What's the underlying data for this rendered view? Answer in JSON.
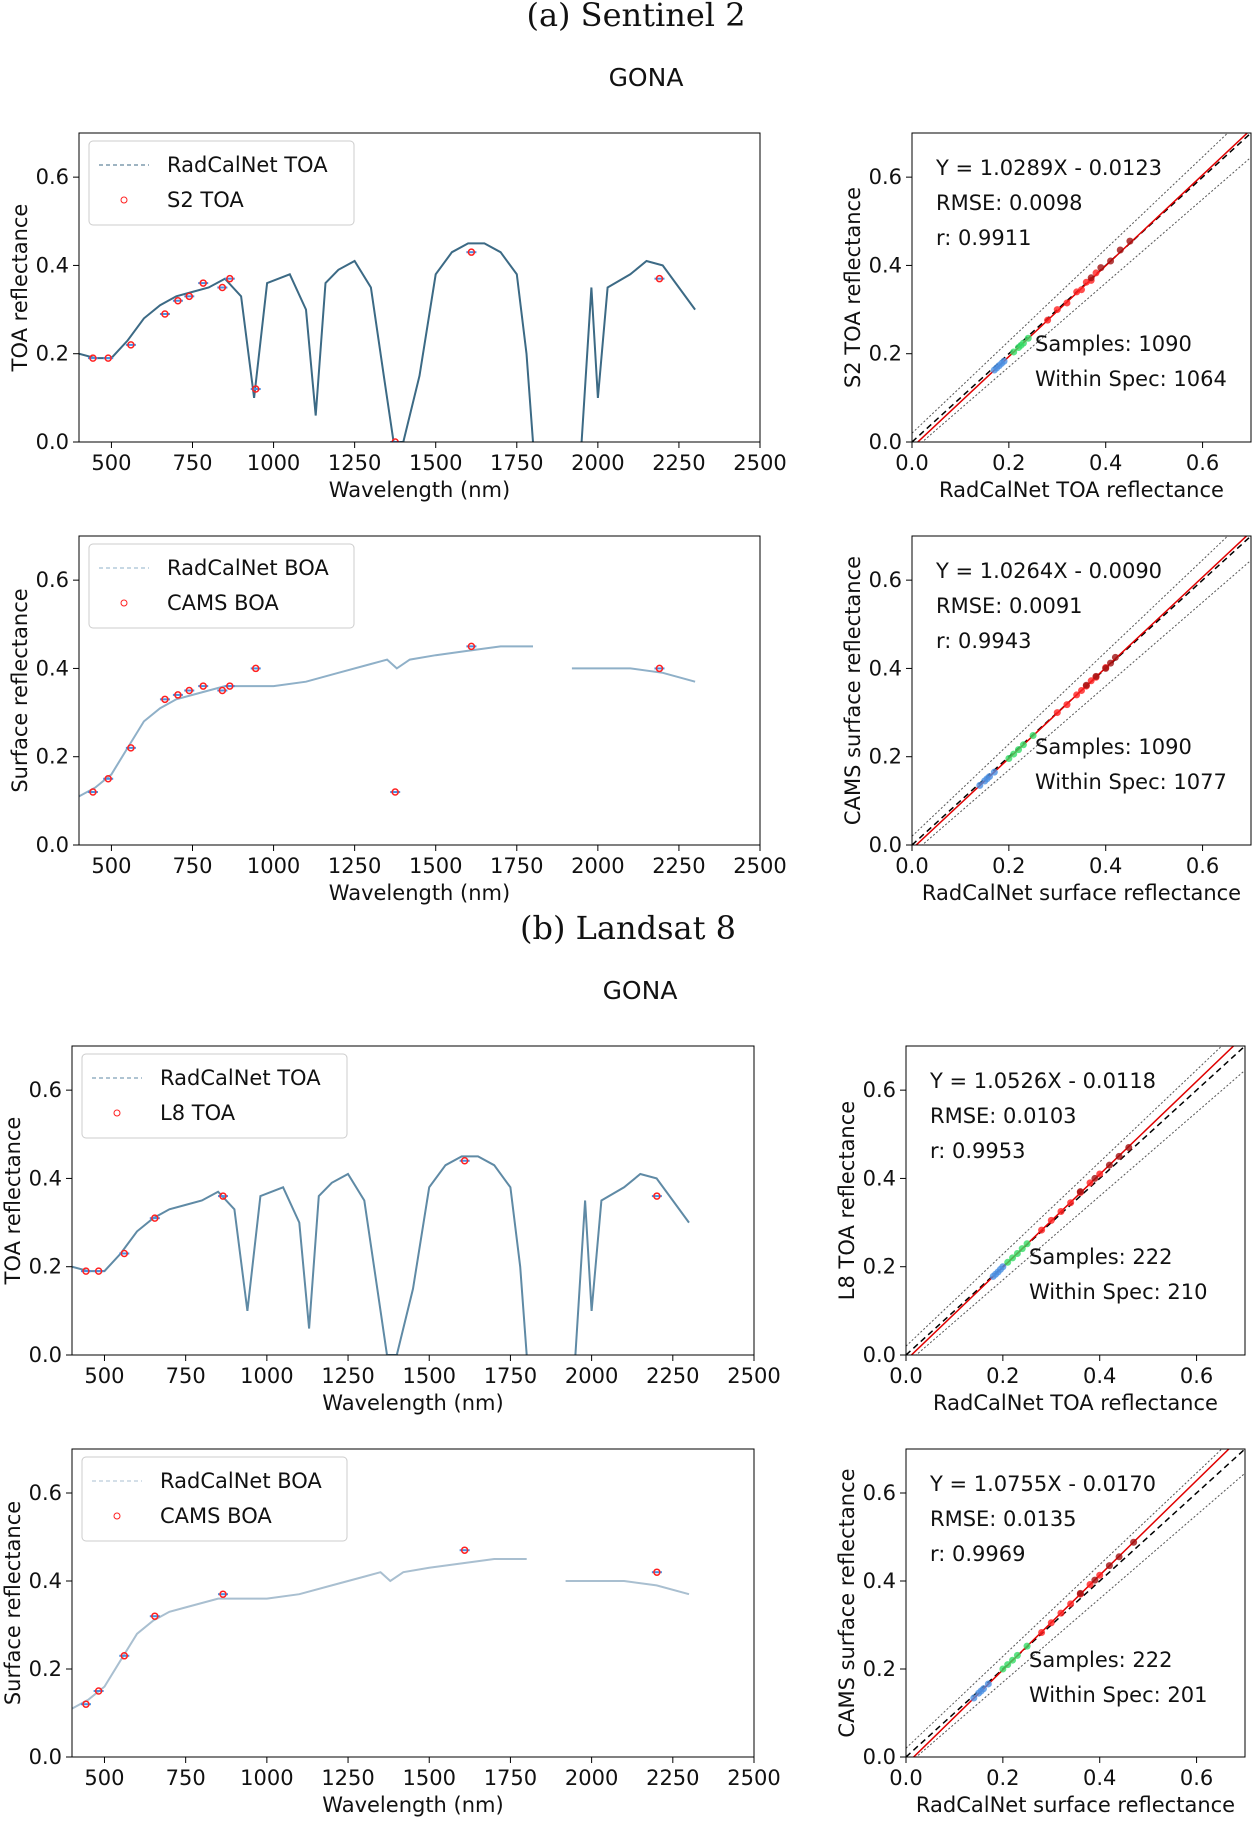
{
  "headings": [
    "(a) Sentinel 2",
    "GONA",
    "(b) Landsat 8",
    "GONA"
  ],
  "chart_data": [
    {
      "type": "line",
      "xlabel": "Wavelength (nm)",
      "ylabel": "TOA reflectance",
      "xlim": [
        400,
        2500
      ],
      "ylim": [
        0,
        0.7
      ],
      "xticks": [
        500,
        750,
        1000,
        1250,
        1500,
        1750,
        2000,
        2250,
        2500
      ],
      "yticks": [
        {
          "value": 0,
          "label": "0.0"
        },
        0.2,
        0.4,
        0.6
      ],
      "legend": "upper left",
      "series": [
        {
          "name": "RadCalNet TOA",
          "color": "#3c6a85",
          "x": [
            400,
            450,
            500,
            550,
            600,
            650,
            700,
            750,
            800,
            850,
            900,
            940,
            980,
            1050,
            1100,
            1130,
            1160,
            1200,
            1250,
            1300,
            1340,
            1370,
            1400,
            1450,
            1500,
            1550,
            1600,
            1650,
            1700,
            1750,
            1780,
            1800,
            1850,
            1950,
            1980,
            2000,
            2030,
            2100,
            2150,
            2200,
            2250,
            2300
          ],
          "values": [
            0.2,
            0.19,
            0.19,
            0.23,
            0.28,
            0.31,
            0.33,
            0.34,
            0.35,
            0.37,
            0.33,
            0.1,
            0.36,
            0.38,
            0.3,
            0.06,
            0.36,
            0.39,
            0.41,
            0.35,
            0.15,
            0,
            0,
            0.15,
            0.38,
            0.43,
            0.45,
            0.45,
            0.43,
            0.38,
            0.2,
            0,
            null,
            0,
            0.35,
            0.1,
            0.35,
            0.38,
            0.41,
            0.4,
            0.35,
            0.3
          ]
        },
        {
          "name": "S2 TOA",
          "color": "#ff2020",
          "x": [
            443,
            490,
            560,
            665,
            705,
            740,
            783,
            842,
            865,
            945,
            1375,
            1610,
            2190
          ],
          "values": [
            0.19,
            0.19,
            0.22,
            0.29,
            0.32,
            0.33,
            0.36,
            0.35,
            0.37,
            0.12,
            0,
            0.43,
            0.37
          ]
        }
      ]
    },
    {
      "type": "scatter",
      "xlabel": "RadCalNet TOA reflectance",
      "ylabel": "S2 TOA reflectance",
      "xlim": [
        0,
        0.7
      ],
      "ylim": [
        0,
        0.7
      ],
      "xticks": [
        {
          "value": 0,
          "label": "0.0"
        },
        0.2,
        0.4,
        0.6
      ],
      "yticks": [
        {
          "value": 0,
          "label": "0.0"
        },
        0.2,
        0.4,
        0.6
      ],
      "annotations": [
        "Y = 1.0289X - 0.0123",
        "RMSE: 0.0098",
        "r: 0.9911"
      ],
      "summary": [
        "Samples: 1090",
        "Within Spec: 1064"
      ],
      "fit": {
        "slope": 1.0289,
        "intercept": -0.0123,
        "color": "#e00000"
      },
      "bounds": [
        {
          "x": [
            0,
            0.7
          ],
          "values": [
            0.02,
            0.75
          ]
        },
        {
          "x": [
            0,
            0.7
          ],
          "values": [
            -0.02,
            0.645
          ]
        }
      ],
      "series": [
        {
          "color": "#4a90e2",
          "x": [
            0.17,
            0.175,
            0.18,
            0.185,
            0.19
          ],
          "values": [
            0.163,
            0.168,
            0.173,
            0.178,
            0.183
          ]
        },
        {
          "color": "#33dd66",
          "x": [
            0.21,
            0.22,
            0.225,
            0.23,
            0.24
          ],
          "values": [
            0.204,
            0.214,
            0.219,
            0.224,
            0.235
          ]
        },
        {
          "color": "#ff2020",
          "x": [
            0.28,
            0.3,
            0.32,
            0.34,
            0.35,
            0.36,
            0.37,
            0.38
          ],
          "values": [
            0.276,
            0.3,
            0.315,
            0.34,
            0.345,
            0.362,
            0.366,
            0.383
          ]
        },
        {
          "color": "#a01010",
          "x": [
            0.37,
            0.39,
            0.41,
            0.43,
            0.45
          ],
          "values": [
            0.372,
            0.395,
            0.41,
            0.435,
            0.455
          ]
        }
      ]
    },
    {
      "type": "line",
      "xlabel": "Wavelength (nm)",
      "ylabel": "Surface reflectance",
      "xlim": [
        400,
        2500
      ],
      "ylim": [
        0,
        0.7
      ],
      "xticks": [
        500,
        750,
        1000,
        1250,
        1500,
        1750,
        2000,
        2250,
        2500
      ],
      "yticks": [
        {
          "value": 0,
          "label": "0.0"
        },
        0.2,
        0.4,
        0.6
      ],
      "legend": "upper left",
      "series": [
        {
          "name": "RadCalNet BOA",
          "color": "#8fb0c8",
          "x": [
            400,
            450,
            500,
            550,
            600,
            650,
            700,
            750,
            800,
            850,
            900,
            1000,
            1100,
            1200,
            1300,
            1350,
            1380,
            1420,
            1500,
            1600,
            1700,
            1800,
            1850,
            1920,
            2000,
            2100,
            2200,
            2300
          ],
          "values": [
            0.11,
            0.13,
            0.16,
            0.22,
            0.28,
            0.31,
            0.33,
            0.34,
            0.35,
            0.36,
            0.36,
            0.36,
            0.37,
            0.39,
            0.41,
            0.42,
            0.4,
            0.42,
            0.43,
            0.44,
            0.45,
            0.45,
            null,
            0.4,
            0.4,
            0.4,
            0.39,
            0.37
          ]
        },
        {
          "name": "CAMS BOA",
          "color": "#ff2020",
          "x": [
            443,
            490,
            560,
            665,
            705,
            740,
            783,
            842,
            865,
            945,
            1375,
            1610,
            2190
          ],
          "values": [
            0.12,
            0.15,
            0.22,
            0.33,
            0.34,
            0.35,
            0.36,
            0.35,
            0.36,
            0.4,
            0.12,
            0.45,
            0.4
          ]
        }
      ]
    },
    {
      "type": "scatter",
      "xlabel": "RadCalNet surface reflectance",
      "ylabel": "CAMS surface reflectance",
      "xlim": [
        0,
        0.7
      ],
      "ylim": [
        0,
        0.7
      ],
      "xticks": [
        {
          "value": 0,
          "label": "0.0"
        },
        0.2,
        0.4,
        0.6
      ],
      "yticks": [
        {
          "value": 0,
          "label": "0.0"
        },
        0.2,
        0.4,
        0.6
      ],
      "annotations": [
        "Y = 1.0264X - 0.0090",
        "RMSE: 0.0091",
        "r: 0.9943"
      ],
      "summary": [
        "Samples: 1090",
        "Within Spec: 1077"
      ],
      "fit": {
        "slope": 1.0264,
        "intercept": -0.009,
        "color": "#e00000"
      },
      "bounds": [
        {
          "x": [
            0,
            0.7
          ],
          "values": [
            0.02,
            0.75
          ]
        },
        {
          "x": [
            0,
            0.7
          ],
          "values": [
            -0.02,
            0.645
          ]
        }
      ],
      "series": [
        {
          "color": "#4a90e2",
          "x": [
            0.14,
            0.15,
            0.155,
            0.16,
            0.17
          ],
          "values": [
            0.135,
            0.145,
            0.15,
            0.155,
            0.165
          ]
        },
        {
          "color": "#33dd66",
          "x": [
            0.2,
            0.21,
            0.22,
            0.23,
            0.25
          ],
          "values": [
            0.196,
            0.206,
            0.216,
            0.227,
            0.248
          ]
        },
        {
          "color": "#ff2020",
          "x": [
            0.3,
            0.32,
            0.34,
            0.35,
            0.36,
            0.37,
            0.38,
            0.4
          ],
          "values": [
            0.3,
            0.318,
            0.34,
            0.35,
            0.36,
            0.372,
            0.38,
            0.402
          ]
        },
        {
          "color": "#a01010",
          "x": [
            0.36,
            0.38,
            0.4,
            0.41,
            0.42
          ],
          "values": [
            0.362,
            0.382,
            0.4,
            0.412,
            0.425
          ]
        }
      ]
    },
    {
      "type": "line",
      "xlabel": "Wavelength (nm)",
      "ylabel": "TOA reflectance",
      "xlim": [
        400,
        2500
      ],
      "ylim": [
        0,
        0.7
      ],
      "xticks": [
        500,
        750,
        1000,
        1250,
        1500,
        1750,
        2000,
        2250,
        2500
      ],
      "yticks": [
        {
          "value": 0,
          "label": "0.0"
        },
        0.2,
        0.4,
        0.6
      ],
      "legend": "upper left",
      "series": [
        {
          "name": "RadCalNet TOA",
          "color": "#5f8aa5",
          "x": [
            400,
            450,
            500,
            550,
            600,
            650,
            700,
            750,
            800,
            850,
            900,
            940,
            980,
            1050,
            1100,
            1130,
            1160,
            1200,
            1250,
            1300,
            1340,
            1370,
            1400,
            1450,
            1500,
            1550,
            1600,
            1650,
            1700,
            1750,
            1780,
            1800,
            1850,
            1950,
            1980,
            2000,
            2030,
            2100,
            2150,
            2200,
            2250,
            2300
          ],
          "values": [
            0.2,
            0.19,
            0.19,
            0.23,
            0.28,
            0.31,
            0.33,
            0.34,
            0.35,
            0.37,
            0.33,
            0.1,
            0.36,
            0.38,
            0.3,
            0.06,
            0.36,
            0.39,
            0.41,
            0.35,
            0.15,
            0,
            0,
            0.15,
            0.38,
            0.43,
            0.45,
            0.45,
            0.43,
            0.38,
            0.2,
            0,
            null,
            0,
            0.35,
            0.1,
            0.35,
            0.38,
            0.41,
            0.4,
            0.35,
            0.3
          ]
        },
        {
          "name": "L8 TOA",
          "color": "#ff2020",
          "x": [
            443,
            482,
            561,
            655,
            865,
            1609,
            2201
          ],
          "values": [
            0.19,
            0.19,
            0.23,
            0.31,
            0.36,
            0.44,
            0.36
          ]
        }
      ]
    },
    {
      "type": "scatter",
      "xlabel": "RadCalNet TOA reflectance",
      "ylabel": "L8 TOA reflectance",
      "xlim": [
        0,
        0.7
      ],
      "ylim": [
        0,
        0.7
      ],
      "xticks": [
        {
          "value": 0,
          "label": "0.0"
        },
        0.2,
        0.4,
        0.6
      ],
      "yticks": [
        {
          "value": 0,
          "label": "0.0"
        },
        0.2,
        0.4,
        0.6
      ],
      "annotations": [
        "Y = 1.0526X - 0.0118",
        "RMSE: 0.0103",
        "r: 0.9953"
      ],
      "summary": [
        "Samples: 222",
        "Within Spec: 210"
      ],
      "fit": {
        "slope": 1.0526,
        "intercept": -0.0118,
        "color": "#e00000"
      },
      "bounds": [
        {
          "x": [
            0,
            0.7
          ],
          "values": [
            0.02,
            0.75
          ]
        },
        {
          "x": [
            0,
            0.7
          ],
          "values": [
            -0.02,
            0.645
          ]
        }
      ],
      "series": [
        {
          "color": "#4a90e2",
          "x": [
            0.18,
            0.185,
            0.19,
            0.195,
            0.2
          ],
          "values": [
            0.178,
            0.183,
            0.188,
            0.194,
            0.2
          ]
        },
        {
          "color": "#33dd66",
          "x": [
            0.21,
            0.22,
            0.23,
            0.24,
            0.25
          ],
          "values": [
            0.21,
            0.22,
            0.23,
            0.241,
            0.252
          ]
        },
        {
          "color": "#ff2020",
          "x": [
            0.28,
            0.3,
            0.32,
            0.34,
            0.36,
            0.38,
            0.4
          ],
          "values": [
            0.283,
            0.305,
            0.325,
            0.345,
            0.368,
            0.39,
            0.41
          ]
        },
        {
          "color": "#a01010",
          "x": [
            0.36,
            0.39,
            0.42,
            0.44,
            0.46
          ],
          "values": [
            0.37,
            0.4,
            0.43,
            0.45,
            0.47
          ]
        }
      ]
    },
    {
      "type": "line",
      "xlabel": "Wavelength (nm)",
      "ylabel": "Surface reflectance",
      "xlim": [
        400,
        2500
      ],
      "ylim": [
        0,
        0.7
      ],
      "xticks": [
        500,
        750,
        1000,
        1250,
        1500,
        1750,
        2000,
        2250,
        2500
      ],
      "yticks": [
        {
          "value": 0,
          "label": "0.0"
        },
        0.2,
        0.4,
        0.6
      ],
      "legend": "upper left",
      "series": [
        {
          "name": "RadCalNet BOA",
          "color": "#a9bfd0",
          "x": [
            400,
            450,
            500,
            550,
            600,
            650,
            700,
            750,
            800,
            850,
            900,
            1000,
            1100,
            1200,
            1300,
            1350,
            1380,
            1420,
            1500,
            1600,
            1700,
            1800,
            1850,
            1920,
            2000,
            2100,
            2200,
            2300
          ],
          "values": [
            0.11,
            0.13,
            0.16,
            0.22,
            0.28,
            0.31,
            0.33,
            0.34,
            0.35,
            0.36,
            0.36,
            0.36,
            0.37,
            0.39,
            0.41,
            0.42,
            0.4,
            0.42,
            0.43,
            0.44,
            0.45,
            0.45,
            null,
            0.4,
            0.4,
            0.4,
            0.39,
            0.37
          ]
        },
        {
          "name": "CAMS BOA",
          "color": "#ff2020",
          "x": [
            443,
            482,
            561,
            655,
            865,
            1609,
            2201
          ],
          "values": [
            0.12,
            0.15,
            0.23,
            0.32,
            0.37,
            0.47,
            0.42
          ]
        }
      ]
    },
    {
      "type": "scatter",
      "xlabel": "RadCalNet surface reflectance",
      "ylabel": "CAMS surface reflectance",
      "xlim": [
        0,
        0.7
      ],
      "ylim": [
        0,
        0.7
      ],
      "xticks": [
        {
          "value": 0,
          "label": "0.0"
        },
        0.2,
        0.4,
        0.6
      ],
      "yticks": [
        {
          "value": 0,
          "label": "0.0"
        },
        0.2,
        0.4,
        0.6
      ],
      "annotations": [
        "Y = 1.0755X - 0.0170",
        "RMSE: 0.0135",
        "r: 0.9969"
      ],
      "summary": [
        "Samples: 222",
        "Within Spec: 201"
      ],
      "fit": {
        "slope": 1.0755,
        "intercept": -0.017,
        "color": "#e00000"
      },
      "bounds": [
        {
          "x": [
            0,
            0.7
          ],
          "values": [
            0.02,
            0.75
          ]
        },
        {
          "x": [
            0,
            0.7
          ],
          "values": [
            -0.02,
            0.645
          ]
        }
      ],
      "series": [
        {
          "color": "#4a90e2",
          "x": [
            0.14,
            0.15,
            0.155,
            0.16,
            0.17
          ],
          "values": [
            0.134,
            0.145,
            0.15,
            0.155,
            0.166
          ]
        },
        {
          "color": "#33dd66",
          "x": [
            0.2,
            0.21,
            0.22,
            0.23,
            0.25
          ],
          "values": [
            0.2,
            0.21,
            0.22,
            0.231,
            0.252
          ]
        },
        {
          "color": "#ff2020",
          "x": [
            0.28,
            0.3,
            0.32,
            0.34,
            0.36,
            0.38,
            0.4
          ],
          "values": [
            0.283,
            0.305,
            0.327,
            0.348,
            0.37,
            0.392,
            0.413
          ]
        },
        {
          "color": "#a01010",
          "x": [
            0.36,
            0.39,
            0.42,
            0.44,
            0.47
          ],
          "values": [
            0.372,
            0.402,
            0.435,
            0.455,
            0.488
          ]
        }
      ]
    }
  ]
}
